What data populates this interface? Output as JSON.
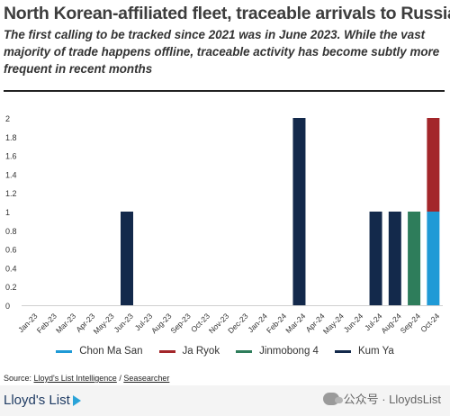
{
  "title": "North Korean-affiliated fleet, traceable arrivals to Russia",
  "subtitle": "The first calling to be tracked since 2021 was in June 2023. While the vast majority of trade happens offline, traceable activity has become subtly more frequent in recent months",
  "source": {
    "prefix": "Source: ",
    "link1": "Lloyd's List Intelligence",
    "separator": " / ",
    "link2": "Seasearcher"
  },
  "brand": "Lloyd's List",
  "watermark": "公众号 · LloydsList",
  "chart_data": {
    "type": "bar",
    "stacked": true,
    "categories": [
      "Jan-23",
      "Feb-23",
      "Mar-23",
      "Apr-23",
      "May-23",
      "Jun-23",
      "Jul-23",
      "Aug-23",
      "Sep-23",
      "Oct-23",
      "Nov-23",
      "Dec-23",
      "Jan-24",
      "Feb-24",
      "Mar-24",
      "Apr-24",
      "May-24",
      "Jun-24",
      "Jul-24",
      "Aug-24",
      "Sep-24",
      "Oct-24"
    ],
    "series": [
      {
        "name": "Chon Ma San",
        "color": "#1f9ad6",
        "values": [
          0,
          0,
          0,
          0,
          0,
          0,
          0,
          0,
          0,
          0,
          0,
          0,
          0,
          0,
          0,
          0,
          0,
          0,
          0,
          0,
          0,
          1
        ]
      },
      {
        "name": "Ja Ryok",
        "color": "#a3262a",
        "values": [
          0,
          0,
          0,
          0,
          0,
          0,
          0,
          0,
          0,
          0,
          0,
          0,
          0,
          0,
          0,
          0,
          0,
          0,
          0,
          0,
          0,
          1
        ]
      },
      {
        "name": "Jinmobong 4",
        "color": "#2e7d5b",
        "values": [
          0,
          0,
          0,
          0,
          0,
          0,
          0,
          0,
          0,
          0,
          0,
          0,
          0,
          0,
          0,
          0,
          0,
          0,
          0,
          0,
          1,
          0
        ]
      },
      {
        "name": "Kum Ya",
        "color": "#13294b",
        "values": [
          0,
          0,
          0,
          0,
          0,
          1,
          0,
          0,
          0,
          0,
          0,
          0,
          0,
          0,
          2,
          0,
          0,
          0,
          1,
          1,
          0,
          0
        ]
      }
    ],
    "yticks": [
      "0",
      "0.2",
      "0.4",
      "0.6",
      "0.8",
      "1",
      "1.2",
      "1.4",
      "1.6",
      "1.8",
      "2"
    ],
    "ylim": [
      0,
      2
    ],
    "grid": false,
    "legend_position": "bottom"
  }
}
